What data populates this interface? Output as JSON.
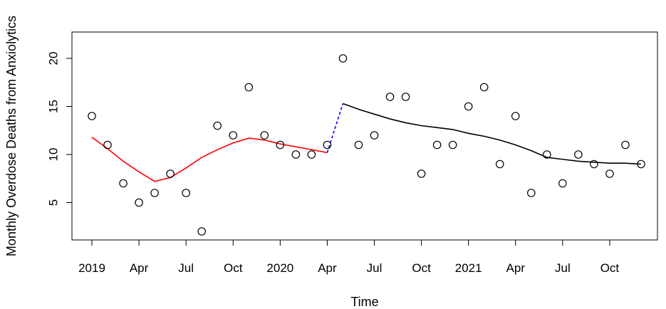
{
  "chart_data": {
    "type": "scatter",
    "xlabel": "Time",
    "ylabel": "Monthly Overdose Deaths from Anxiolytics",
    "x_tick_labels": [
      "2019",
      "Apr",
      "Jul",
      "Oct",
      "2020",
      "Apr",
      "Jul",
      "Oct",
      "2021",
      "Apr",
      "Jul",
      "Oct"
    ],
    "x_tick_months": [
      0,
      3,
      6,
      9,
      12,
      15,
      18,
      21,
      24,
      27,
      30,
      33
    ],
    "xlim_months": [
      0,
      35
    ],
    "y_ticks": [
      5,
      10,
      15,
      20
    ],
    "ylim": [
      2,
      20
    ],
    "points": {
      "months": [
        0,
        1,
        2,
        3,
        4,
        5,
        6,
        7,
        8,
        9,
        10,
        11,
        12,
        13,
        14,
        15,
        16,
        17,
        18,
        19,
        20,
        21,
        22,
        23,
        24,
        25,
        26,
        27,
        28,
        29,
        30,
        31,
        32,
        33,
        34,
        35
      ],
      "values": [
        14,
        11,
        7,
        5,
        6,
        8,
        6,
        2,
        13,
        12,
        17,
        12,
        11,
        10,
        10,
        11,
        20,
        11,
        12,
        16,
        16,
        8,
        11,
        11,
        15,
        17,
        9,
        14,
        6,
        10,
        7,
        10,
        9,
        8,
        11,
        9
      ]
    },
    "series": [
      {
        "color": "#ff0000",
        "dash": "solid",
        "months": [
          0,
          1,
          2,
          3,
          4,
          5,
          6,
          7,
          8,
          9,
          10,
          11,
          12,
          13,
          14,
          15
        ],
        "values": [
          11.8,
          10.6,
          9.3,
          8.2,
          7.2,
          7.6,
          8.6,
          9.7,
          10.5,
          11.2,
          11.7,
          11.5,
          11.1,
          10.8,
          10.5,
          10.2
        ]
      },
      {
        "color": "#0000ff",
        "dash": "dashed",
        "months": [
          15,
          16
        ],
        "values": [
          10.2,
          15.3
        ]
      },
      {
        "color": "#000000",
        "dash": "solid",
        "months": [
          16,
          17,
          18,
          19,
          20,
          21,
          22,
          23,
          24,
          25,
          26,
          27,
          28,
          29,
          30,
          31,
          32,
          33,
          34,
          35
        ],
        "values": [
          15.3,
          14.7,
          14.2,
          13.7,
          13.3,
          13.0,
          12.8,
          12.6,
          12.2,
          11.9,
          11.5,
          11.0,
          10.4,
          9.7,
          9.5,
          9.3,
          9.2,
          9.1,
          9.1,
          9.0
        ]
      }
    ]
  }
}
